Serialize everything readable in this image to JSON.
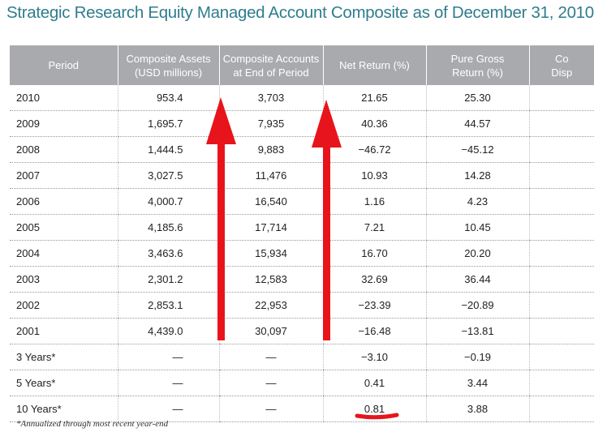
{
  "title": "Strategic Research Equity Managed Account Composite as of December 31, 2010",
  "table": {
    "headers": [
      [
        "Period"
      ],
      [
        "Composite Assets",
        "(USD millions)"
      ],
      [
        "Composite Accounts",
        "at End of Period"
      ],
      [
        "Net Return (%)"
      ],
      [
        "Pure Gross",
        "Return (%)"
      ],
      [
        "Co",
        "Disp"
      ]
    ],
    "rows": [
      [
        "2010",
        "953.4",
        "3,703",
        "21.65",
        "25.30"
      ],
      [
        "2009",
        "1,695.7",
        "7,935",
        "40.36",
        "44.57"
      ],
      [
        "2008",
        "1,444.5",
        "9,883",
        "−46.72",
        "−45.12"
      ],
      [
        "2007",
        "3,027.5",
        "11,476",
        "10.93",
        "14.28"
      ],
      [
        "2006",
        "4,000.7",
        "16,540",
        "1.16",
        "4.23"
      ],
      [
        "2005",
        "4,185.6",
        "17,714",
        "7.21",
        "10.45"
      ],
      [
        "2004",
        "3,463.6",
        "15,934",
        "16.70",
        "20.20"
      ],
      [
        "2003",
        "2,301.2",
        "12,583",
        "32.69",
        "36.44"
      ],
      [
        "2002",
        "2,853.1",
        "22,953",
        "−23.39",
        "−20.89"
      ],
      [
        "2001",
        "4,439.0",
        "30,097",
        "−16.48",
        "−13.81"
      ],
      [
        "3 Years*",
        "—",
        "—",
        "−3.10",
        "−0.19"
      ],
      [
        "5 Years*",
        "—",
        "—",
        "0.41",
        "3.44"
      ],
      [
        "10 Years*",
        "—",
        "—",
        "0.81",
        "3.88"
      ]
    ]
  },
  "footnote": "*Annualized through most recent year-end"
}
